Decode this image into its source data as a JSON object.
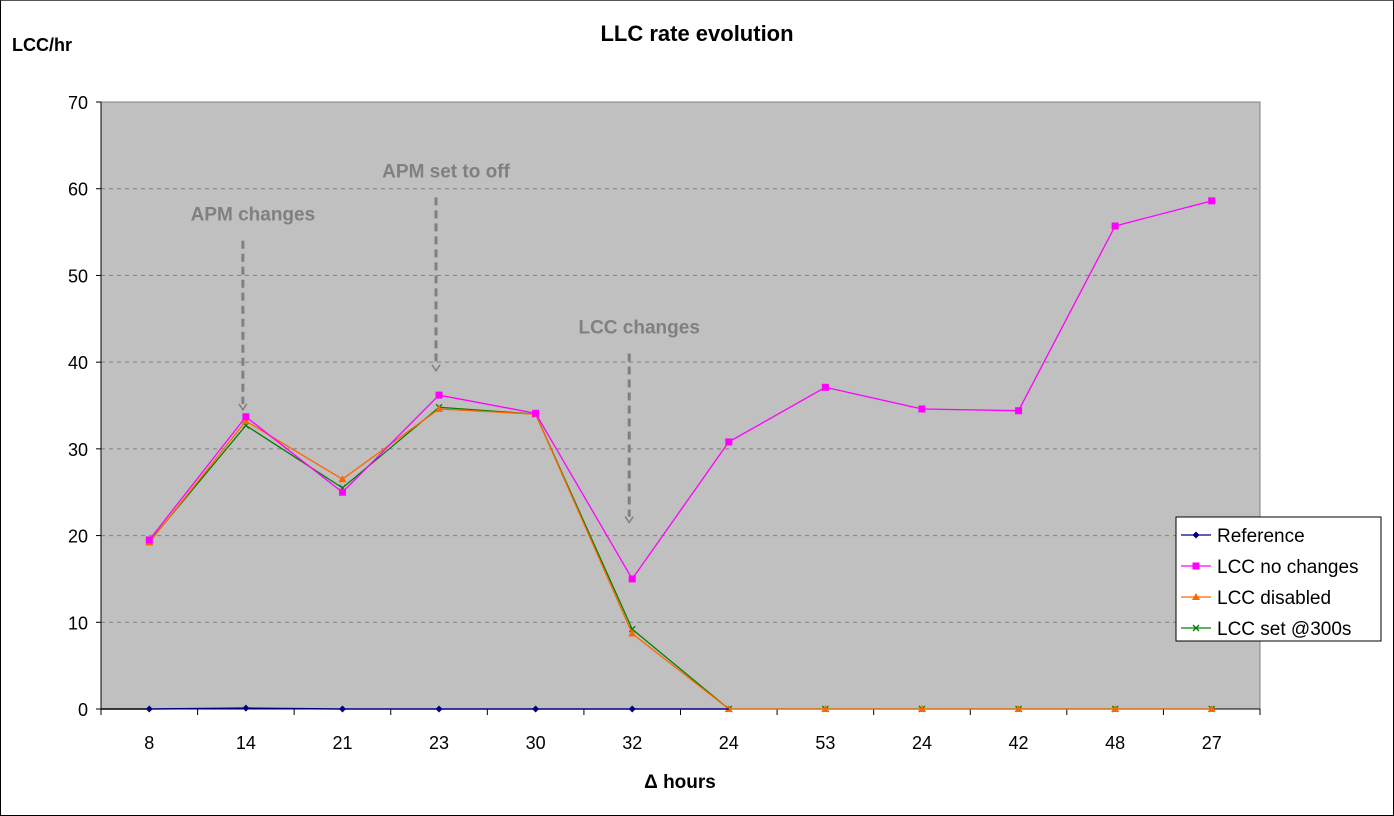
{
  "chart_data": {
    "type": "line",
    "title": "LLC rate evolution",
    "ylabel": "LCC/hr",
    "xlabel": "Δ hours",
    "ylim": [
      0,
      70
    ],
    "yticks": [
      0,
      10,
      20,
      30,
      40,
      50,
      60,
      70
    ],
    "grid": "horizontal dashed",
    "background": "#c0c0c0",
    "legend_position": "right",
    "categories": [
      "8",
      "14",
      "21",
      "23",
      "30",
      "32",
      "24",
      "53",
      "24",
      "42",
      "48",
      "27"
    ],
    "series": [
      {
        "name": "Reference",
        "color": "#000080",
        "marker": "diamond",
        "values": [
          0,
          0.1,
          0,
          0,
          0,
          0,
          null,
          null,
          null,
          null,
          null,
          null
        ]
      },
      {
        "name": "LCC no changes",
        "color": "#ff00ff",
        "marker": "square",
        "values": [
          19.5,
          33.7,
          25.0,
          36.2,
          34.1,
          15.0,
          30.8,
          37.1,
          34.6,
          34.4,
          55.7,
          58.6
        ]
      },
      {
        "name": "LCC disabled",
        "color": "#ff6600",
        "marker": "triangle",
        "values": [
          19.2,
          33.2,
          26.5,
          34.6,
          34.0,
          8.7,
          0,
          0,
          0,
          0,
          0,
          0
        ]
      },
      {
        "name": "LCC set @300s",
        "color": "#008000",
        "marker": "x",
        "values": [
          19.3,
          32.7,
          25.5,
          34.8,
          34.0,
          9.2,
          0,
          0,
          0,
          0,
          0,
          0
        ]
      }
    ],
    "annotations": [
      {
        "text": "APM changes",
        "category_index": 1,
        "arrow_from": 54,
        "arrow_to": 34.5
      },
      {
        "text": "APM set to off",
        "category_index": 3,
        "arrow_from": 59,
        "arrow_to": 39
      },
      {
        "text": "LCC changes",
        "category_index": 5,
        "arrow_from": 41,
        "arrow_to": 21.5
      }
    ]
  }
}
